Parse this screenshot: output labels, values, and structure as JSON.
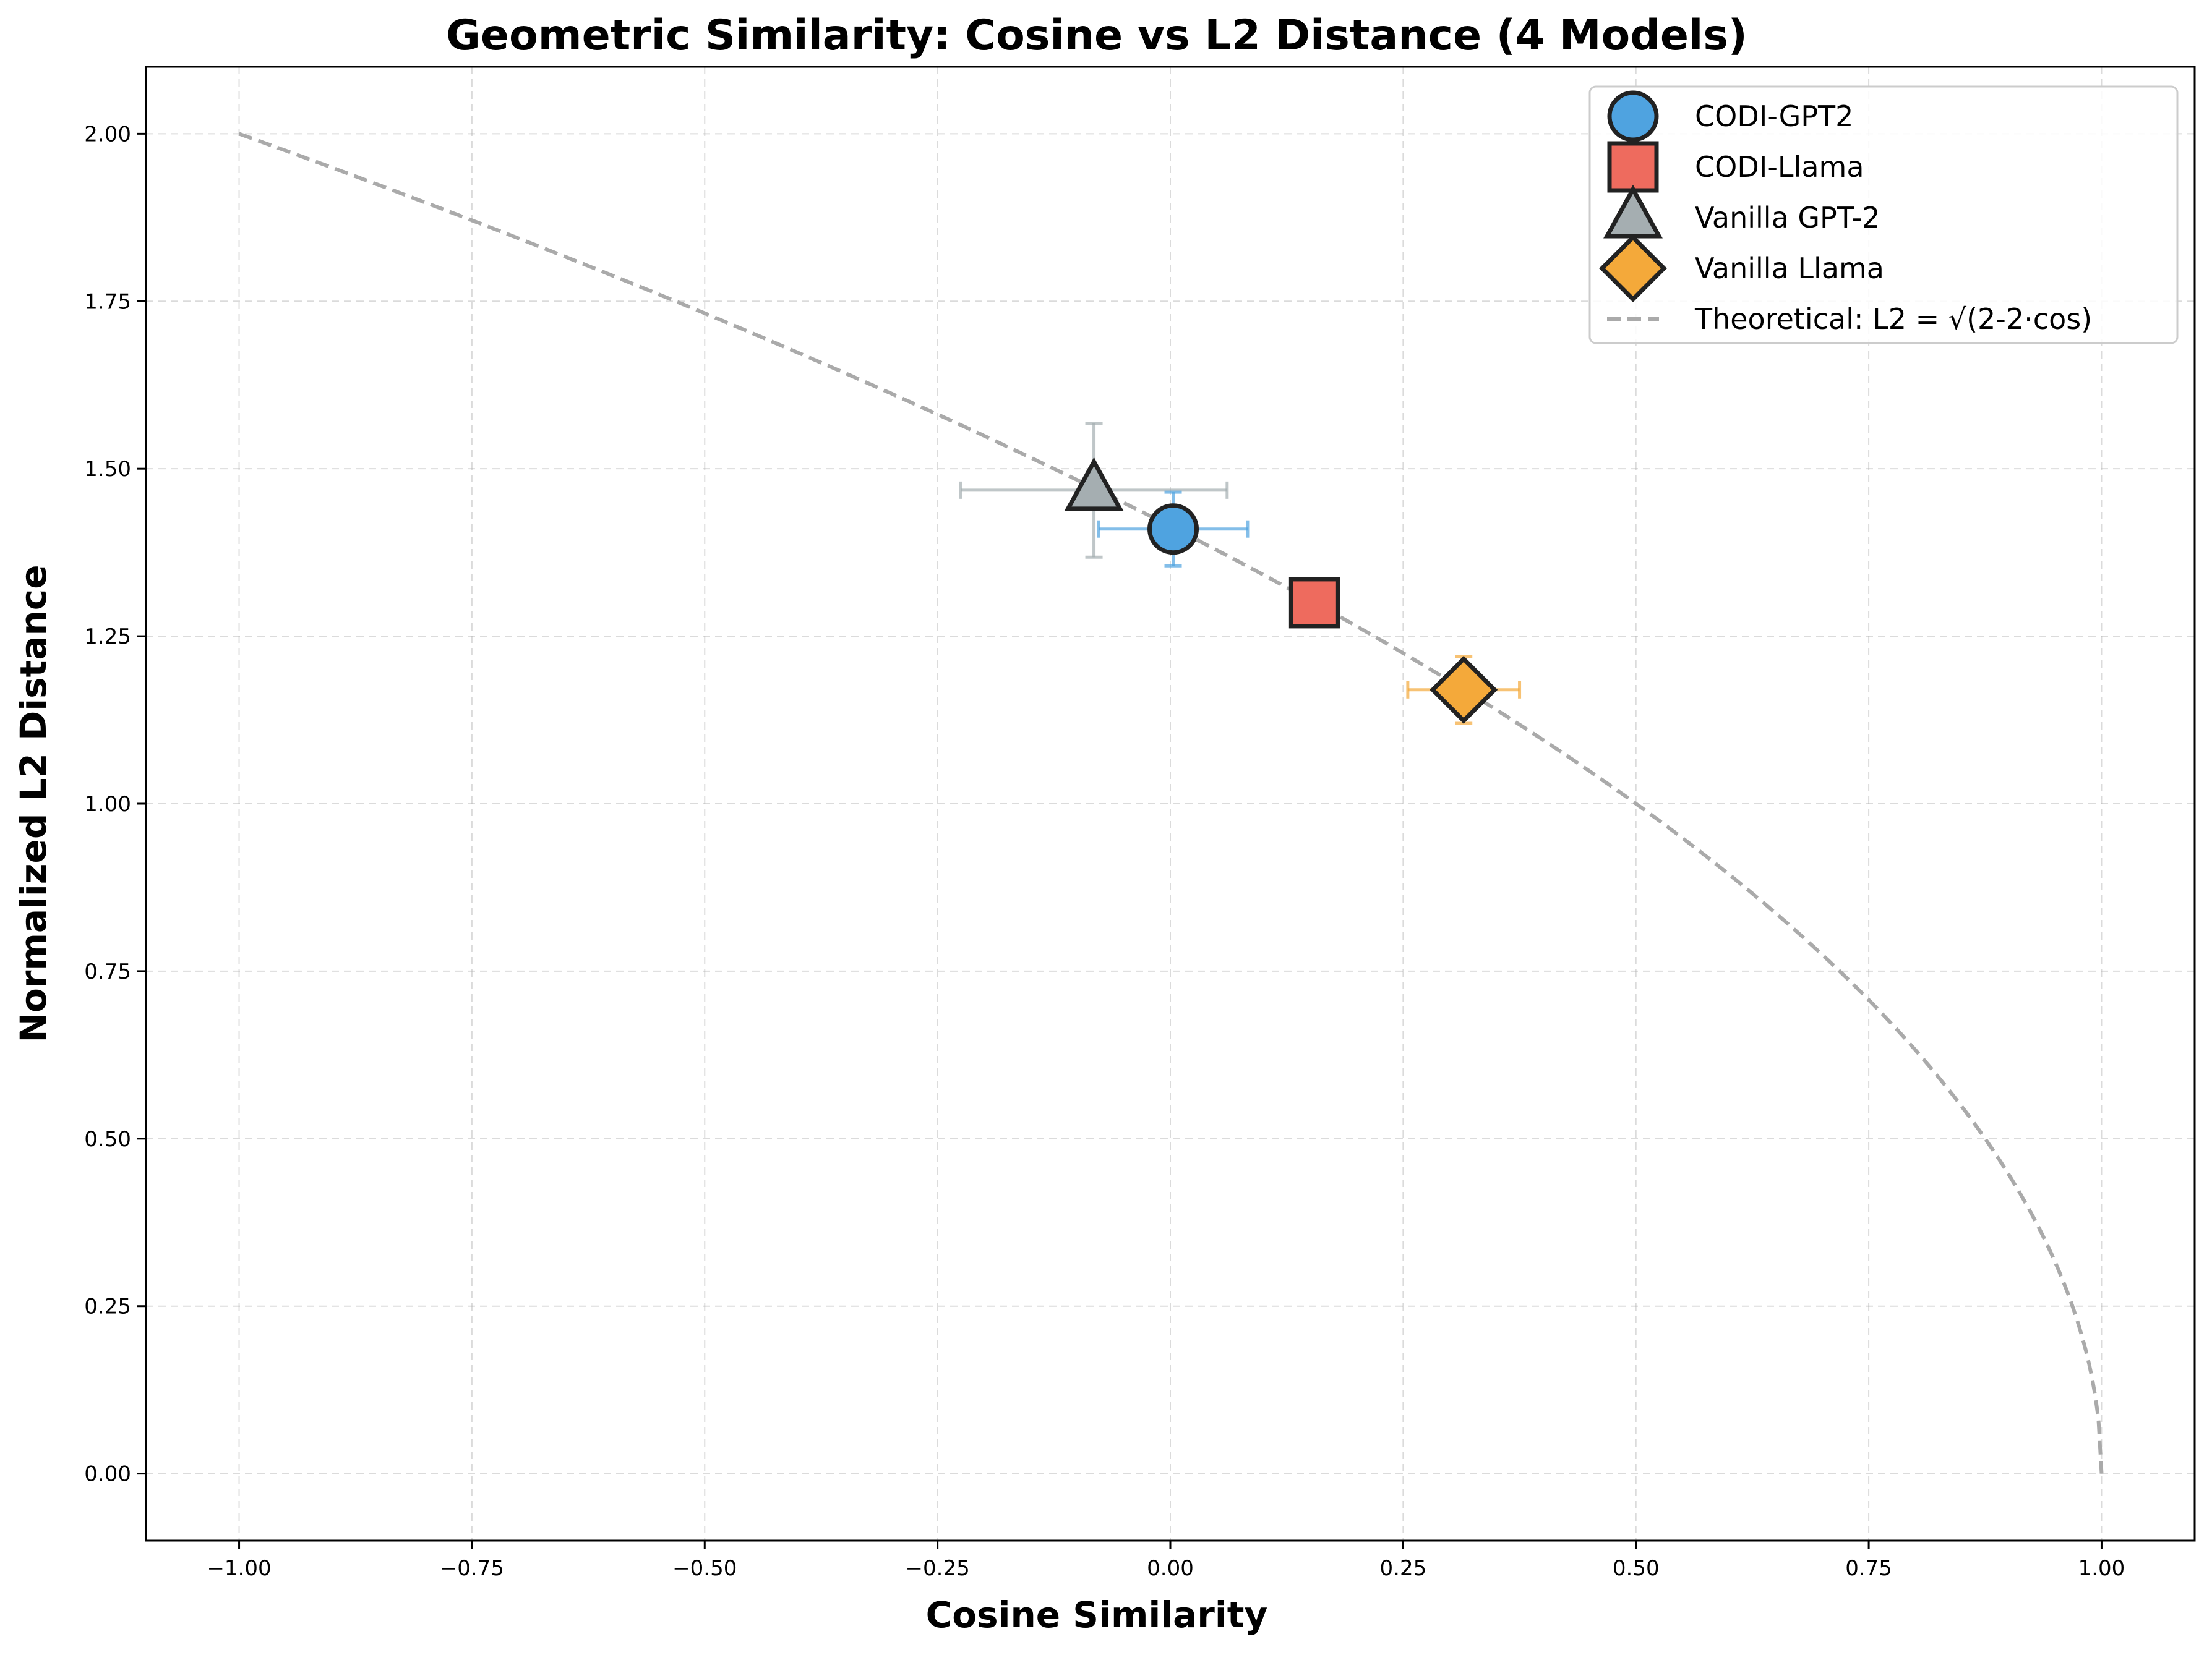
{
  "chart_data": {
    "type": "scatter",
    "title": "Geometric Similarity: Cosine vs L2 Distance (4 Models)",
    "xlabel": "Cosine Similarity",
    "ylabel": "Normalized L2 Distance",
    "xlim": [
      -1.1,
      1.1
    ],
    "ylim": [
      -0.1,
      2.1
    ],
    "xticks": [
      -1.0,
      -0.75,
      -0.5,
      -0.25,
      0.0,
      0.25,
      0.5,
      0.75,
      1.0
    ],
    "xtick_labels": [
      "−1.00",
      "−0.75",
      "−0.50",
      "−0.25",
      "0.00",
      "0.25",
      "0.50",
      "0.75",
      "1.00"
    ],
    "yticks": [
      0.0,
      0.25,
      0.5,
      0.75,
      1.0,
      1.25,
      1.5,
      1.75,
      2.0
    ],
    "ytick_labels": [
      "0.00",
      "0.25",
      "0.50",
      "0.75",
      "1.00",
      "1.25",
      "1.50",
      "1.75",
      "2.00"
    ],
    "grid": true,
    "legend_position": "top-right",
    "series": [
      {
        "name": "CODI-GPT2",
        "marker": "circle",
        "color": "#4fa3e0",
        "x": 0.003,
        "y": 1.41,
        "xerr": 0.08,
        "yerr": 0.055
      },
      {
        "name": "CODI-Llama",
        "marker": "square",
        "color": "#ee6b5e",
        "x": 0.155,
        "y": 1.3,
        "xerr": 0.015,
        "yerr": 0.015
      },
      {
        "name": "Vanilla GPT-2",
        "marker": "triangle",
        "color": "#a5aeb1",
        "x": -0.082,
        "y": 1.468,
        "xerr": 0.143,
        "yerr": 0.1
      },
      {
        "name": "Vanilla Llama",
        "marker": "diamond",
        "color": "#f4a93a",
        "x": 0.315,
        "y": 1.17,
        "xerr": 0.06,
        "yerr": 0.05
      }
    ],
    "theoretical_curve": {
      "name": "Theoretical: L2 = √(2-2·cos)",
      "color": "#aaaaaa",
      "style": "dashed",
      "domain": [
        -1.0,
        1.0
      ]
    }
  }
}
